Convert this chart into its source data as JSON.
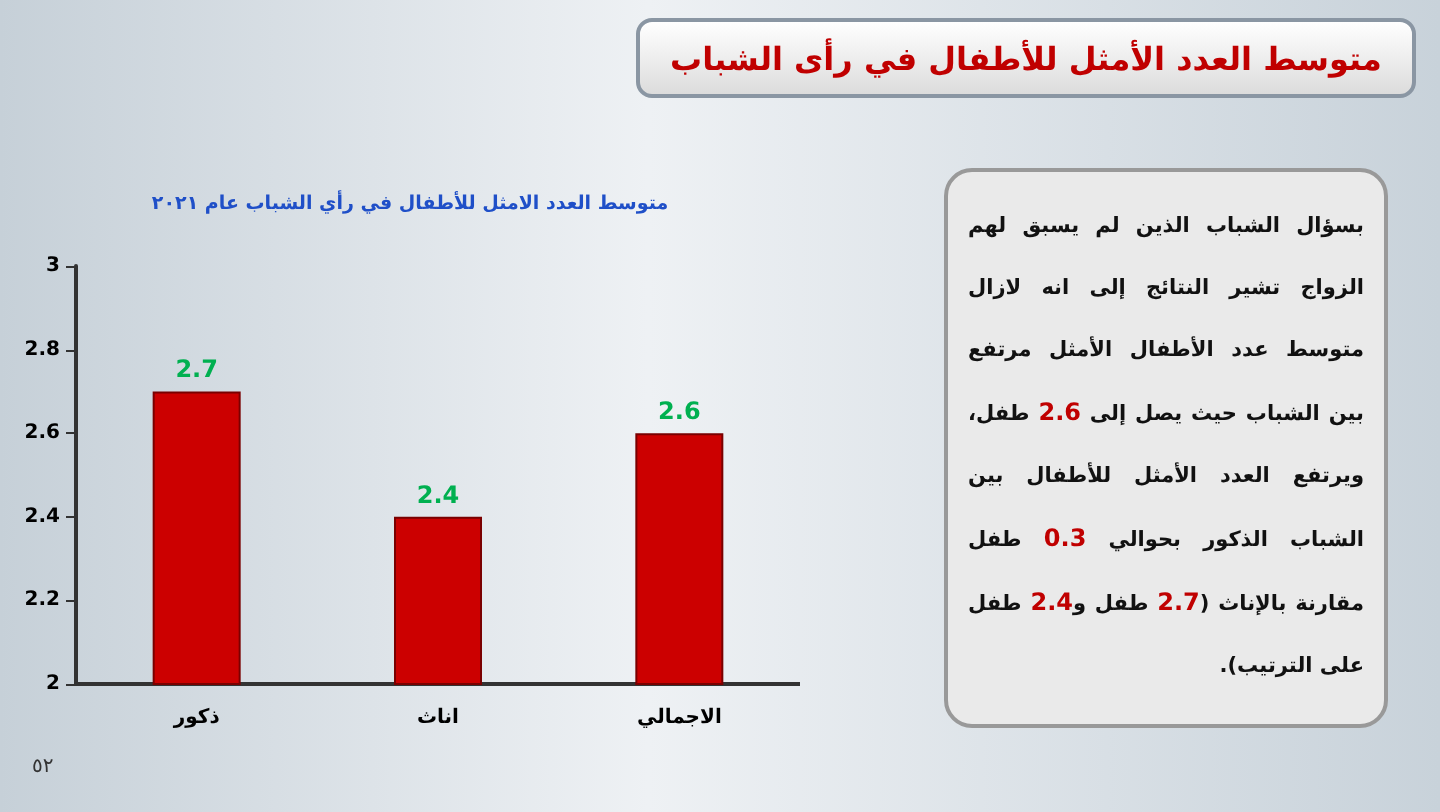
{
  "chart_data": {
    "type": "bar",
    "title": "متوسط العدد الأمثل للأطفال في رأى الشباب",
    "subtitle": "متوسط العدد الامثل للأطفال في رأي الشباب عام ٢٠٢١",
    "categories": [
      "ذكور",
      "اناث",
      "الاجمالي"
    ],
    "values": [
      2.7,
      2.4,
      2.6
    ],
    "color": "#cc0000",
    "ylim": [
      2,
      3
    ],
    "yticks": [
      2,
      2.2,
      2.4,
      2.6,
      2.8,
      3
    ],
    "grid": false,
    "data_labels": true,
    "annotations": [
      "بسؤال الشباب الذين لم يسبق لهم الزواج تشير النتائج إلى انه لازال متوسط عدد الأطفال الأمثل مرتفع بين الشباب حيث يصل إلى 2.6 طفل، ويرتفع العدد الأمثل للأطفال بين الشباب الذكور بحوالي 0.3 طفل مقارنة بالإناث (2.7 طفل و2.4 طفل على الترتيب).",
      "٥٢"
    ]
  }
}
